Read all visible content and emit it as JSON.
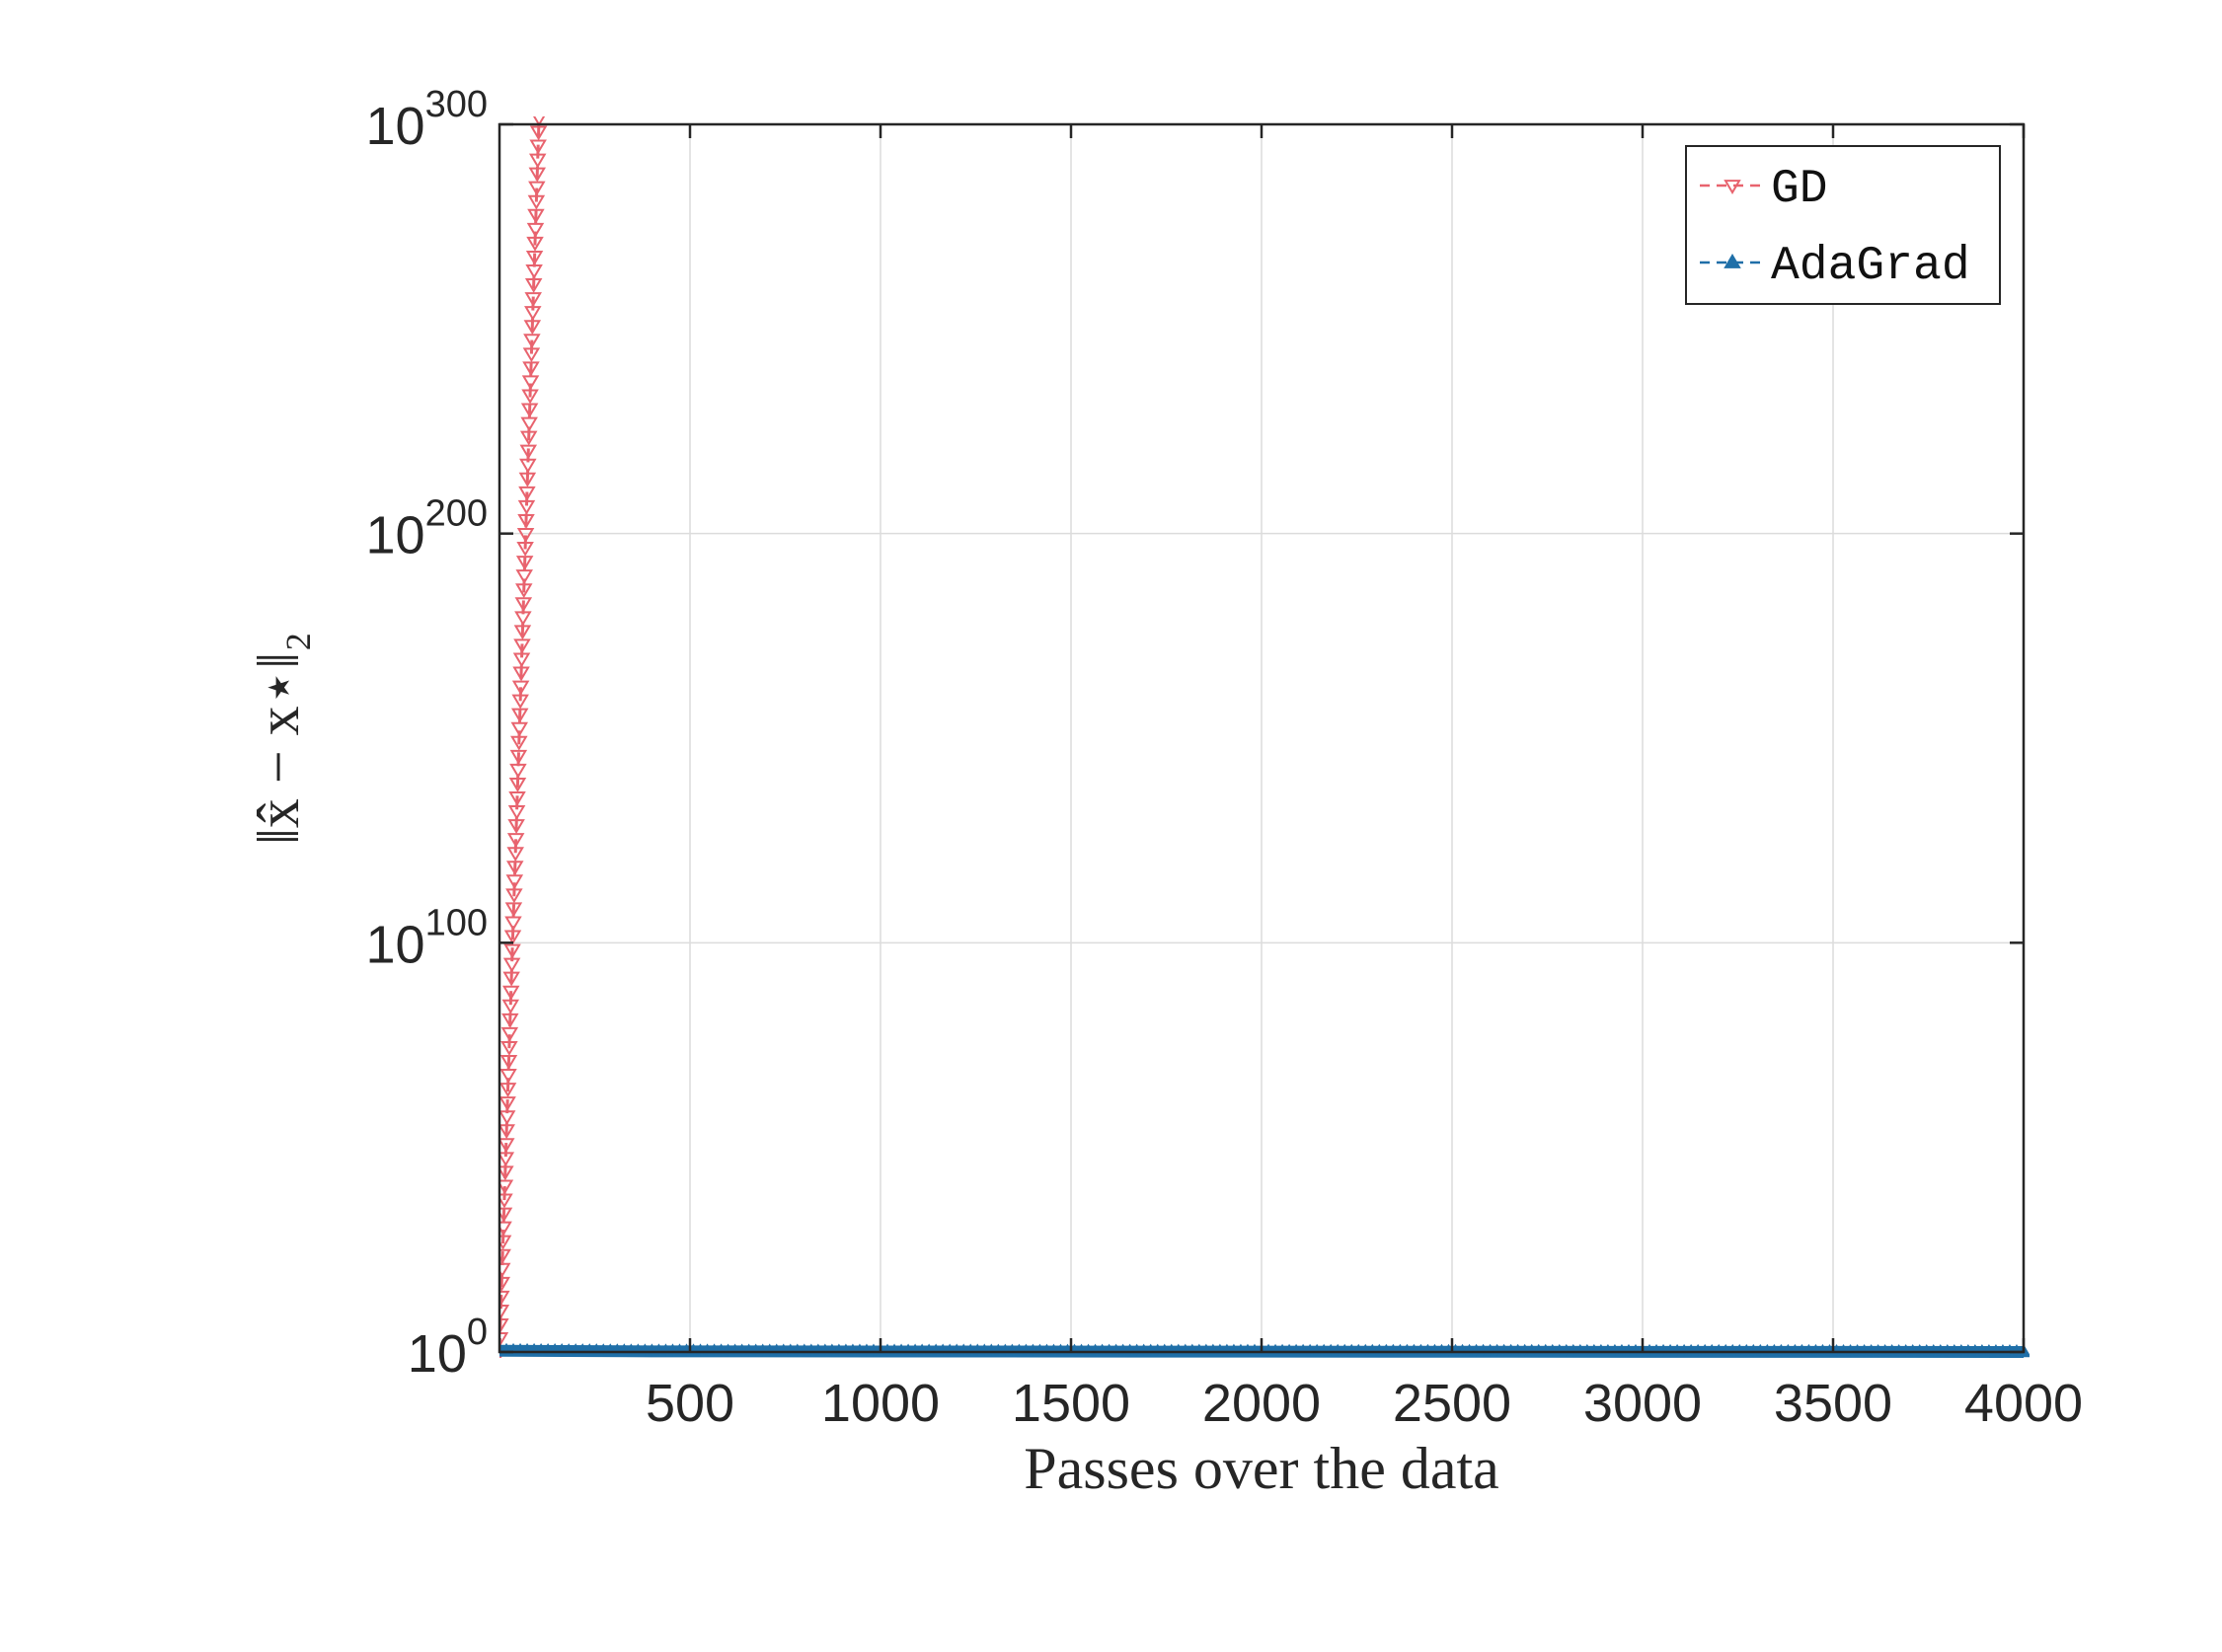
{
  "chart_data": {
    "type": "line",
    "title": "",
    "xlabel": "Passes over the data",
    "ylabel": "‖x̂ − x⋆‖₂",
    "xlim": [
      0,
      4000
    ],
    "ylim_log10": [
      0,
      300
    ],
    "yscale": "log",
    "grid": true,
    "legend_position": "top-right",
    "x_ticks": [
      {
        "value": 500,
        "label": "500"
      },
      {
        "value": 1000,
        "label": "1000"
      },
      {
        "value": 1500,
        "label": "1500"
      },
      {
        "value": 2000,
        "label": "2000"
      },
      {
        "value": 2500,
        "label": "2500"
      },
      {
        "value": 3000,
        "label": "3000"
      },
      {
        "value": 3500,
        "label": "3500"
      },
      {
        "value": 4000,
        "label": "4000"
      }
    ],
    "y_ticks": [
      {
        "exp": 0,
        "base": "10",
        "exp_label": "0"
      },
      {
        "exp": 100,
        "base": "10",
        "exp_label": "100"
      },
      {
        "exp": 200,
        "base": "10",
        "exp_label": "200"
      },
      {
        "exp": 300,
        "base": "10",
        "exp_label": "300"
      }
    ],
    "series": [
      {
        "name": "GD",
        "color": "#e8636e",
        "linestyle": "dashed",
        "marker": "triangle-down",
        "x_start": 0,
        "x_end": 105,
        "log10_y_start": 0,
        "log10_y_end": 305,
        "description_points": [
          [
            0,
            0
          ],
          [
            105,
            305
          ]
        ]
      },
      {
        "name": "AdaGrad",
        "color": "#1f6fa8",
        "linestyle": "dashed",
        "marker": "triangle-up",
        "points": [
          [
            0,
            0.3
          ],
          [
            400,
            0.15
          ],
          [
            4000,
            0.0
          ]
        ]
      }
    ]
  }
}
